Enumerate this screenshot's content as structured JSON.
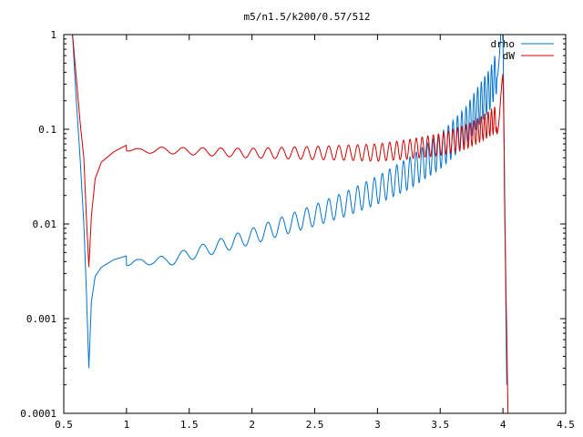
{
  "chart_data": {
    "type": "line",
    "title": "m5/n1.5/k200/0.57/512",
    "xlabel": "",
    "ylabel": "",
    "xlim": [
      0.5,
      4.5
    ],
    "ylim": [
      0.0001,
      1
    ],
    "yscale": "log",
    "grid": false,
    "legend_position": "top-right",
    "x_tick_labels": [
      "0.5",
      "1",
      "1.5",
      "2",
      "2.5",
      "3",
      "3.5",
      "4",
      "4.5"
    ],
    "y_tick_labels": [
      "0.0001",
      "0.001",
      "0.01",
      "0.1",
      "1"
    ],
    "series": [
      {
        "name": "drho",
        "color": "#0072d4",
        "x": [
          0.57,
          0.6,
          0.63,
          0.66,
          0.68,
          0.7,
          0.72,
          0.75,
          0.8,
          0.9,
          1.0,
          1.1,
          1.2,
          1.3,
          1.4,
          1.5,
          1.75,
          2.0,
          2.25,
          2.5,
          2.75,
          3.0,
          3.25,
          3.5,
          3.7,
          3.8,
          3.9,
          3.97,
          4.0,
          4.03
        ],
        "y": [
          1.0,
          0.2,
          0.05,
          0.01,
          0.002,
          0.0003,
          0.0015,
          0.0028,
          0.0035,
          0.0042,
          0.0046,
          0.0042,
          0.0048,
          0.0045,
          0.005,
          0.0055,
          0.007,
          0.009,
          0.012,
          0.016,
          0.022,
          0.032,
          0.05,
          0.09,
          0.17,
          0.28,
          0.45,
          0.8,
          1.0,
          0.0002
        ]
      },
      {
        "name": "dW",
        "color": "#d40000",
        "x": [
          0.57,
          0.6,
          0.63,
          0.66,
          0.68,
          0.7,
          0.72,
          0.75,
          0.8,
          0.9,
          1.0,
          1.1,
          1.2,
          1.5,
          2.0,
          2.5,
          3.0,
          3.25,
          3.5,
          3.7,
          3.8,
          3.9,
          4.0,
          4.04
        ],
        "y": [
          1.0,
          0.35,
          0.12,
          0.05,
          0.012,
          0.0035,
          0.012,
          0.03,
          0.045,
          0.058,
          0.068,
          0.062,
          0.065,
          0.064,
          0.063,
          0.066,
          0.07,
          0.078,
          0.09,
          0.11,
          0.13,
          0.16,
          0.2,
          0.0001
        ]
      }
    ]
  }
}
